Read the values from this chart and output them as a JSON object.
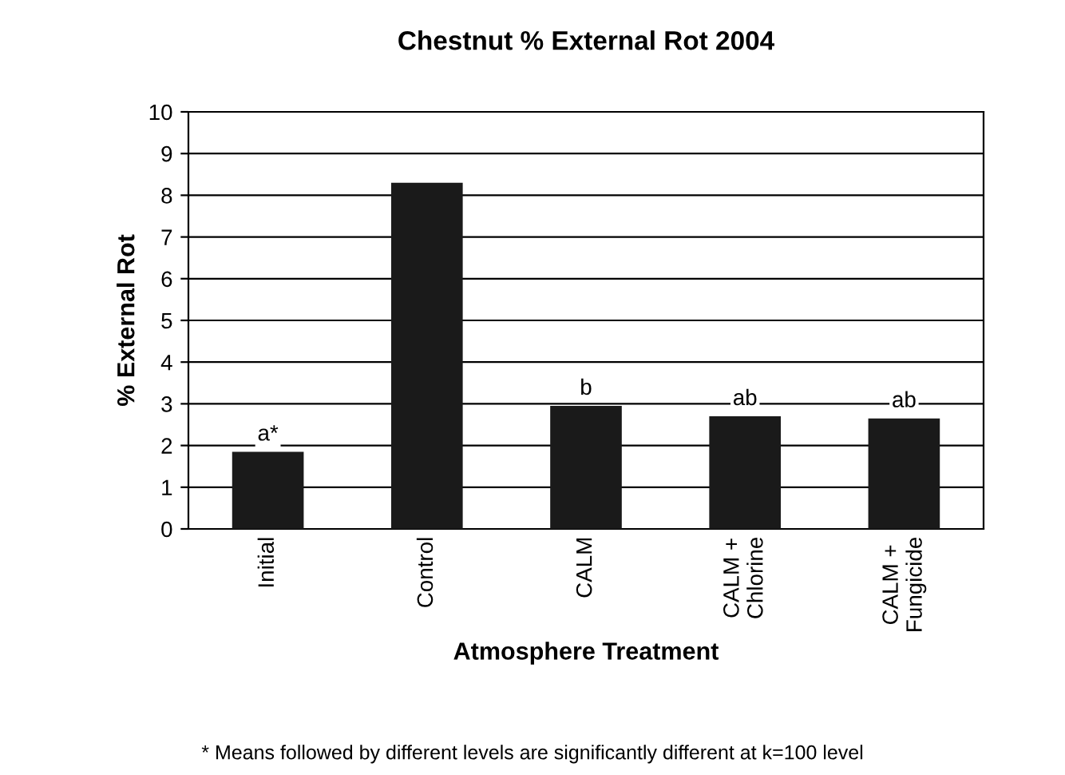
{
  "chart_data": {
    "type": "bar",
    "title": "Chestnut % External Rot 2004",
    "xlabel": "Atmosphere Treatment",
    "ylabel": "% External Rot",
    "categories": [
      "Initial",
      "Control",
      "CALM",
      "CALM +\nChlorine",
      "CALM +\nFungicide"
    ],
    "values": [
      1.85,
      8.3,
      2.95,
      2.7,
      2.65
    ],
    "color": "#1a1a1a",
    "ylim": [
      0,
      10
    ],
    "yticks": [
      0,
      1,
      2,
      3,
      4,
      5,
      6,
      7,
      8,
      9,
      10
    ],
    "grid": "y",
    "annotations": [
      {
        "text": "a*",
        "x": "Initial",
        "y": 1.85
      },
      {
        "text": "b",
        "x": "CALM",
        "y": 2.95
      },
      {
        "text": "ab",
        "x": "CALM +\nChlorine",
        "y": 2.7
      },
      {
        "text": "ab",
        "x": "CALM +\nFungicide",
        "y": 2.65
      },
      "* Means followed by different levels are significantly different at k=100 level"
    ]
  }
}
